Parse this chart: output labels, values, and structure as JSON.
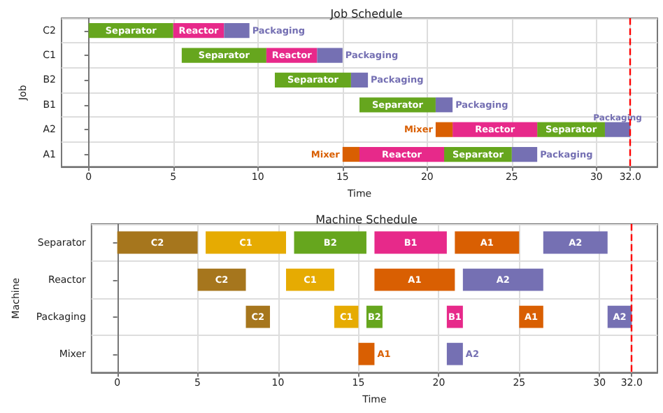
{
  "chart_data": [
    {
      "type": "bar",
      "orientation": "horizontal",
      "title": "Job Schedule",
      "xlabel": "Time",
      "ylabel": "Job",
      "categories": [
        "C2",
        "C1",
        "B2",
        "B1",
        "A2",
        "A1"
      ],
      "series": [
        {
          "name": "Separator",
          "color": "#66a61e",
          "base": [
            0,
            5.5,
            11,
            16,
            26.5,
            21
          ],
          "values": [
            5,
            5,
            4.5,
            4.5,
            4,
            4
          ]
        },
        {
          "name": "Reactor",
          "color": "#e7298a",
          "base": [
            5,
            10.5,
            null,
            null,
            21.5,
            16
          ],
          "values": [
            3,
            3,
            null,
            null,
            5,
            5
          ]
        },
        {
          "name": "Packaging",
          "color": "#7570b3",
          "base": [
            8,
            13.5,
            15.5,
            20.5,
            30.5,
            25
          ],
          "values": [
            1.5,
            1.5,
            1,
            1,
            1.5,
            1.5
          ]
        },
        {
          "name": "Mixer",
          "color": "#d95f02",
          "base": [
            null,
            null,
            null,
            null,
            20.5,
            15
          ],
          "values": [
            null,
            null,
            null,
            null,
            1,
            1
          ]
        }
      ],
      "xlim": [
        -1.6,
        33.6
      ],
      "xticks": [
        0,
        5,
        10,
        15,
        20,
        25,
        30,
        {
          "value": 32,
          "label": "32.0"
        }
      ],
      "grid": true,
      "ref_lines": [
        {
          "axis": "x",
          "value": 32,
          "color": "#ff0000",
          "line_style": "dashed"
        }
      ]
    },
    {
      "type": "bar",
      "orientation": "horizontal",
      "title": "Machine Schedule",
      "xlabel": "Time",
      "ylabel": "Machine",
      "categories": [
        "Separator",
        "Reactor",
        "Packaging",
        "Mixer"
      ],
      "series": [
        {
          "name": "C2",
          "color": "#a6761d",
          "base": [
            0,
            5,
            8,
            null
          ],
          "values": [
            5,
            3,
            1.5,
            null
          ]
        },
        {
          "name": "C1",
          "color": "#e6ab02",
          "base": [
            5.5,
            10.5,
            13.5,
            null
          ],
          "values": [
            5,
            3,
            1.5,
            null
          ]
        },
        {
          "name": "B2",
          "color": "#66a61e",
          "base": [
            11,
            null,
            15.5,
            null
          ],
          "values": [
            4.5,
            null,
            1,
            null
          ]
        },
        {
          "name": "B1",
          "color": "#e7298a",
          "base": [
            16,
            null,
            20.5,
            null
          ],
          "values": [
            4.5,
            null,
            1,
            null
          ]
        },
        {
          "name": "A1",
          "color": "#d95f02",
          "base": [
            21,
            16,
            25,
            15
          ],
          "values": [
            4,
            5,
            1.5,
            1
          ]
        },
        {
          "name": "A2",
          "color": "#7570b3",
          "base": [
            26.5,
            21.5,
            30.5,
            20.5
          ],
          "values": [
            4,
            5,
            1.5,
            1
          ]
        }
      ],
      "xlim": [
        -1.6,
        33.6
      ],
      "xticks": [
        0,
        5,
        10,
        15,
        20,
        25,
        30,
        {
          "value": 32,
          "label": "32.0"
        }
      ],
      "grid": true,
      "ref_lines": [
        {
          "axis": "x",
          "value": 32,
          "color": "#ff0000",
          "line_style": "dashed"
        }
      ]
    }
  ]
}
